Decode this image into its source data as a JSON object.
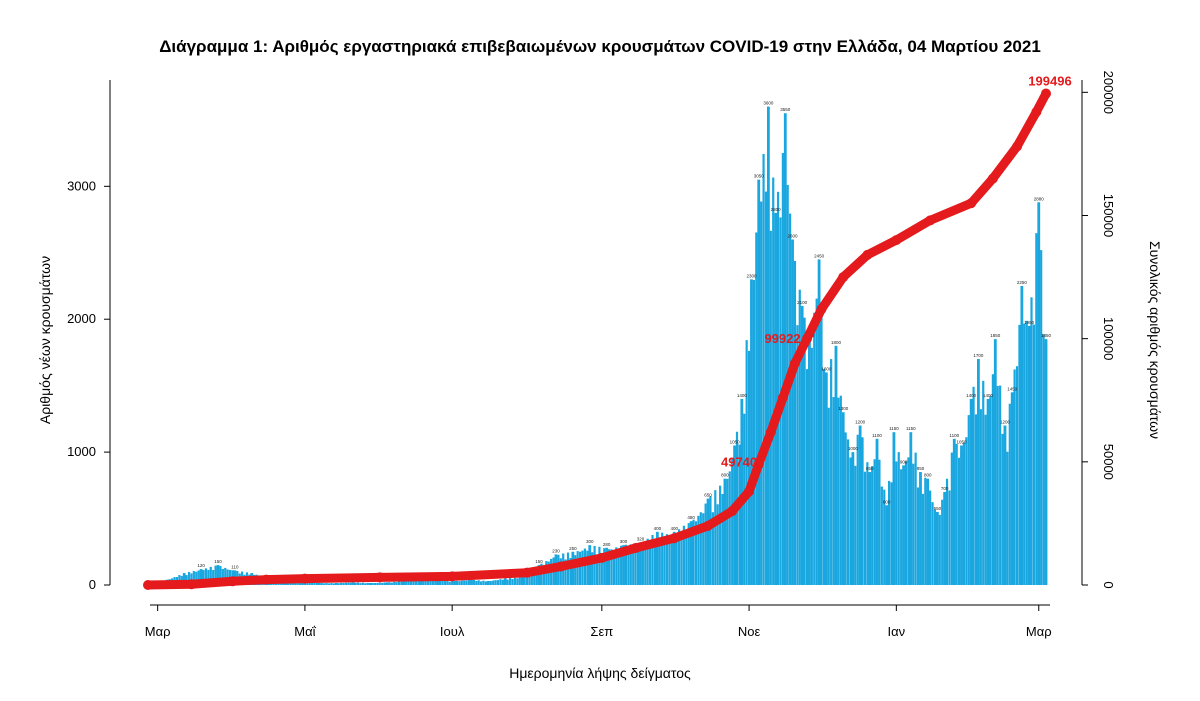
{
  "chart_data": {
    "type": "bar",
    "title": "Διάγραμμα 1: Αριθμός εργαστηριακά επιβεβαιωμένων κρουσμάτων COVID-19 στην Ελλάδα, 04 Μαρτίου 2021",
    "xlabel": "Ημερομηνία λήψης δείγματος",
    "ylabel": "Αριθμός νέων κρουσμάτων",
    "y2label": "Συνολικός αριθμός κρουσμάτων",
    "ylim": [
      0,
      3800
    ],
    "y2lim": [
      0,
      205000
    ],
    "yticks": [
      "0",
      "1000",
      "2000",
      "3000"
    ],
    "y2ticks": [
      "0",
      "50000",
      "100000",
      "150000",
      "200000"
    ],
    "x_start": "2020-02-26",
    "x_end": "2021-03-04",
    "month_ticks": [
      {
        "date": "2020-03-01",
        "label": "Μαρ"
      },
      {
        "date": "2020-05-01",
        "label": "Μαΐ"
      },
      {
        "date": "2020-07-01",
        "label": "Ιουλ"
      },
      {
        "date": "2020-09-01",
        "label": "Σεπ"
      },
      {
        "date": "2020-11-01",
        "label": "Νοε"
      },
      {
        "date": "2021-01-01",
        "label": "Ιαν"
      },
      {
        "date": "2021-03-01",
        "label": "Μαρ"
      }
    ],
    "series": [
      {
        "name": "Αριθμός νέων κρουσμάτων",
        "kind": "bar",
        "color": "#1aa7e0",
        "x": [
          "2020-02-26",
          "2020-03-05",
          "2020-03-12",
          "2020-03-19",
          "2020-03-26",
          "2020-04-02",
          "2020-04-09",
          "2020-04-16",
          "2020-04-23",
          "2020-04-30",
          "2020-05-07",
          "2020-05-14",
          "2020-05-21",
          "2020-05-28",
          "2020-06-04",
          "2020-06-11",
          "2020-06-18",
          "2020-06-25",
          "2020-07-02",
          "2020-07-09",
          "2020-07-16",
          "2020-07-23",
          "2020-07-30",
          "2020-08-06",
          "2020-08-13",
          "2020-08-20",
          "2020-08-27",
          "2020-09-03",
          "2020-09-10",
          "2020-09-17",
          "2020-09-24",
          "2020-10-01",
          "2020-10-08",
          "2020-10-15",
          "2020-10-22",
          "2020-10-26",
          "2020-10-29",
          "2020-11-02",
          "2020-11-05",
          "2020-11-09",
          "2020-11-12",
          "2020-11-16",
          "2020-11-19",
          "2020-11-23",
          "2020-11-26",
          "2020-11-30",
          "2020-12-03",
          "2020-12-07",
          "2020-12-10",
          "2020-12-14",
          "2020-12-17",
          "2020-12-21",
          "2020-12-24",
          "2020-12-28",
          "2020-12-31",
          "2021-01-04",
          "2021-01-07",
          "2021-01-11",
          "2021-01-14",
          "2021-01-18",
          "2021-01-21",
          "2021-01-25",
          "2021-01-28",
          "2021-02-01",
          "2021-02-04",
          "2021-02-08",
          "2021-02-11",
          "2021-02-15",
          "2021-02-18",
          "2021-02-22",
          "2021-02-25",
          "2021-03-01",
          "2021-03-04"
        ],
        "values": [
          5,
          40,
          90,
          120,
          150,
          110,
          90,
          60,
          40,
          30,
          15,
          15,
          20,
          15,
          20,
          30,
          40,
          40,
          30,
          40,
          30,
          50,
          60,
          150,
          230,
          250,
          300,
          280,
          300,
          320,
          400,
          400,
          480,
          650,
          800,
          1050,
          1400,
          2300,
          3050,
          3600,
          2800,
          3550,
          2600,
          2100,
          1850,
          2450,
          1600,
          1800,
          1300,
          1000,
          1200,
          850,
          1100,
          600,
          1150,
          900,
          1150,
          850,
          800,
          550,
          700,
          1100,
          1050,
          1400,
          1700,
          1400,
          1850,
          1200,
          1450,
          2250,
          1950,
          2880,
          1850
        ]
      },
      {
        "name": "Συνολικός αριθμός κρουσμάτων",
        "kind": "line",
        "axis": "right",
        "color": "#e41a1c",
        "x": [
          "2020-02-26",
          "2020-03-15",
          "2020-04-01",
          "2020-04-15",
          "2020-05-01",
          "2020-06-01",
          "2020-07-01",
          "2020-08-01",
          "2020-08-15",
          "2020-09-01",
          "2020-09-15",
          "2020-10-01",
          "2020-10-15",
          "2020-10-25",
          "2020-11-01",
          "2020-11-05",
          "2020-11-10",
          "2020-11-15",
          "2020-11-20",
          "2020-11-25",
          "2020-12-01",
          "2020-12-10",
          "2020-12-20",
          "2021-01-01",
          "2021-01-15",
          "2021-02-01",
          "2021-02-10",
          "2021-02-20",
          "2021-02-28",
          "2021-03-04"
        ],
        "values": [
          0,
          300,
          1500,
          2200,
          2600,
          3100,
          3500,
          5000,
          7500,
          11000,
          15000,
          19000,
          24000,
          30000,
          38000,
          49000,
          62000,
          76000,
          90000,
          100000,
          112000,
          125000,
          134000,
          140000,
          148000,
          155000,
          165000,
          178000,
          192000,
          199496
        ]
      }
    ],
    "annotations": [
      {
        "text": "199496",
        "date": "2021-03-04",
        "value": 199496
      },
      {
        "text": "99922",
        "date": "2020-11-24",
        "value": 99922
      },
      {
        "text": "49740",
        "date": "2020-11-06",
        "value": 49740
      }
    ]
  }
}
